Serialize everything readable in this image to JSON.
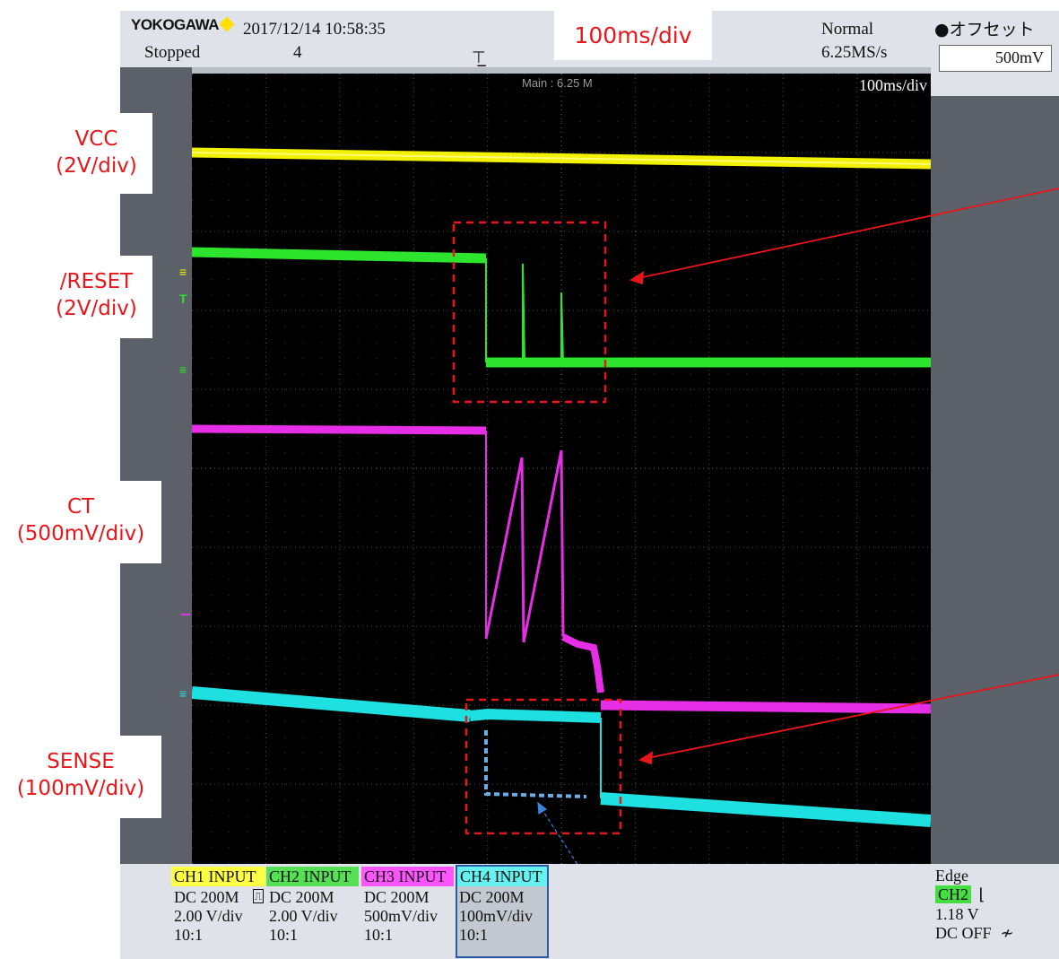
{
  "header": {
    "brand": "YOKOGAWA",
    "datetime": "2017/12/14 10:58:35",
    "status": "Stopped",
    "acq_count": "4",
    "time_div_callout": "100ms/div",
    "mode": "Normal",
    "sample_rate": "6.25MS/s"
  },
  "offset": {
    "label": "●オフセット",
    "value": "500mV"
  },
  "screen": {
    "main_record": "Main : 6.25 M",
    "time_div": "100ms/div"
  },
  "channel_labels": [
    {
      "name": "VCC",
      "scale": "(2V/div)"
    },
    {
      "name": "/RESET",
      "scale": "(2V/div)"
    },
    {
      "name": "CT",
      "scale": "(500mV/div)"
    },
    {
      "name": "SENSE",
      "scale": "(100mV/div)"
    }
  ],
  "channels": [
    {
      "title": "CH1 INPUT",
      "coupling": "DC 200M",
      "vdiv": "2.00 V/div",
      "probe": "10:1",
      "color": "#ffff00"
    },
    {
      "title": "CH2 INPUT",
      "coupling": "DC 200M",
      "vdiv": "2.00 V/div",
      "probe": "10:1",
      "color": "#22dd22"
    },
    {
      "title": "CH3 INPUT",
      "coupling": "DC 200M",
      "vdiv": "500mV/div",
      "probe": "10:1",
      "color": "#ff33ff"
    },
    {
      "title": "CH4 INPUT",
      "coupling": "DC 200M",
      "vdiv": "100mV/div",
      "probe": "10:1",
      "color": "#33ffff"
    }
  ],
  "trigger": {
    "type": "Edge",
    "source": "CH2",
    "level": "1.18 V",
    "coupling": "DC OFF"
  },
  "colors": {
    "vcc": "#f2f200",
    "reset": "#2ee52e",
    "ct": "#e62ee6",
    "sense": "#1ee0e0",
    "annotation": "#e8161a",
    "sense_dotted": "#6aaee8"
  }
}
